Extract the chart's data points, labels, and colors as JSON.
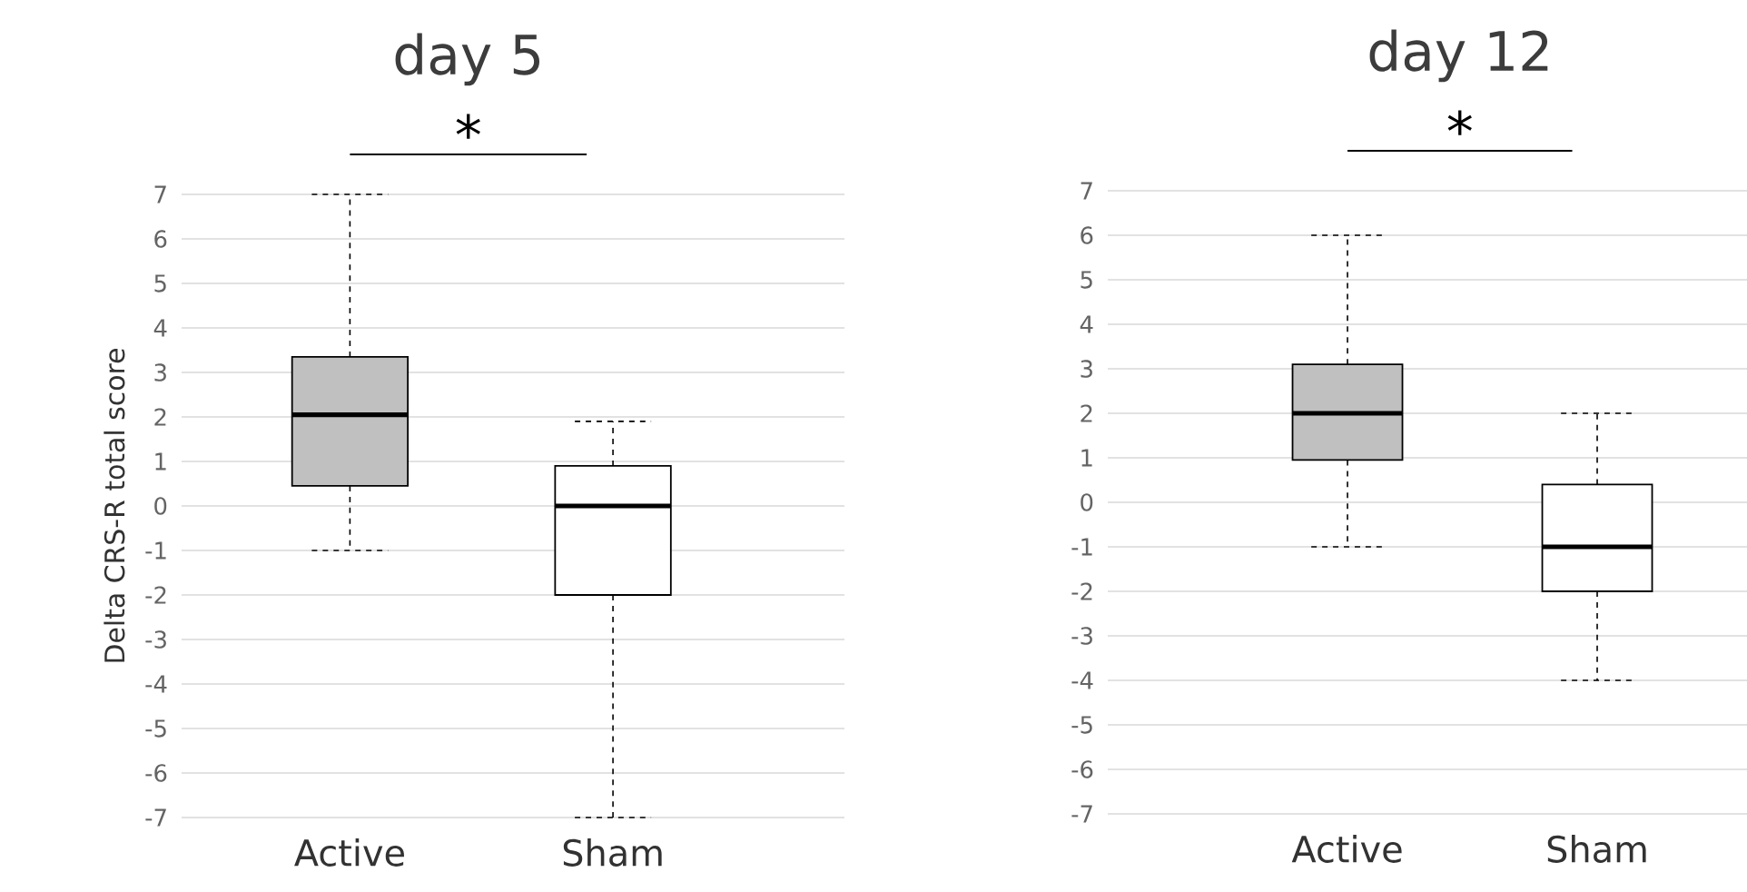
{
  "chart_data": [
    {
      "type": "box",
      "title": "day 5",
      "ylabel": "Delta CRS-R total score",
      "categories": [
        "Active",
        "Sham"
      ],
      "colors": [
        "#c0c0c0",
        "#ffffff"
      ],
      "boxes": [
        {
          "low": -1,
          "q1": 0.45,
          "median": 2.05,
          "q3": 3.35,
          "high": 7
        },
        {
          "low": -7,
          "q1": -2,
          "median": 0,
          "q3": 0.9,
          "high": 1.9
        }
      ],
      "ylim": [
        -7,
        7
      ],
      "yticks": [
        -7,
        -6,
        -5,
        -4,
        -3,
        -2,
        -1,
        0,
        1,
        2,
        3,
        4,
        5,
        6,
        7
      ],
      "grid": "y",
      "annotations": [
        "*"
      ]
    },
    {
      "type": "box",
      "title": "day 12",
      "categories": [
        "Active",
        "Sham"
      ],
      "colors": [
        "#c0c0c0",
        "#ffffff"
      ],
      "boxes": [
        {
          "low": -1,
          "q1": 0.95,
          "median": 2,
          "q3": 3.1,
          "high": 6
        },
        {
          "low": -4,
          "q1": -2,
          "median": -1,
          "q3": 0.4,
          "high": 2
        }
      ],
      "ylim": [
        -7,
        7
      ],
      "yticks": [
        -7,
        -6,
        -5,
        -4,
        -3,
        -2,
        -1,
        0,
        1,
        2,
        3,
        4,
        5,
        6,
        7
      ],
      "grid": "y",
      "annotations": [
        "*"
      ]
    }
  ]
}
